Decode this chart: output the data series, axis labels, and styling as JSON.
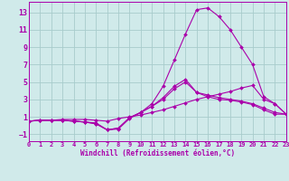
{
  "background_color": "#d0eaea",
  "grid_color": "#a8cccc",
  "line_color": "#aa00aa",
  "xlabel": "Windchill (Refroidissement éolien,°C)",
  "xlim": [
    0,
    23
  ],
  "ylim": [
    -1.8,
    14.2
  ],
  "xticks": [
    0,
    1,
    2,
    3,
    4,
    5,
    6,
    7,
    8,
    9,
    10,
    11,
    12,
    13,
    14,
    15,
    16,
    17,
    18,
    19,
    20,
    21,
    22,
    23
  ],
  "yticks": [
    -1,
    1,
    3,
    5,
    7,
    9,
    11,
    13
  ],
  "lines": [
    {
      "y": [
        0.5,
        0.6,
        0.6,
        0.7,
        0.7,
        0.7,
        0.6,
        0.5,
        0.8,
        1.0,
        1.2,
        1.5,
        1.8,
        2.2,
        2.6,
        3.0,
        3.3,
        3.6,
        3.9,
        4.3,
        4.6,
        3.0,
        2.5,
        1.3
      ]
    },
    {
      "y": [
        0.5,
        0.6,
        0.6,
        0.6,
        0.5,
        0.4,
        0.3,
        -0.5,
        -0.3,
        0.9,
        1.5,
        2.2,
        3.2,
        4.5,
        5.3,
        3.8,
        3.5,
        3.2,
        3.0,
        2.8,
        2.5,
        2.0,
        1.5,
        1.3
      ]
    },
    {
      "y": [
        0.5,
        0.6,
        0.6,
        0.6,
        0.5,
        0.4,
        0.2,
        -0.5,
        -0.4,
        0.8,
        1.5,
        2.5,
        4.5,
        7.5,
        10.5,
        13.3,
        13.5,
        12.5,
        11.0,
        9.0,
        7.0,
        3.3,
        2.5,
        1.3
      ]
    },
    {
      "y": [
        0.5,
        0.6,
        0.6,
        0.6,
        0.5,
        0.4,
        0.2,
        -0.5,
        -0.3,
        0.9,
        1.5,
        2.2,
        3.0,
        4.2,
        5.0,
        3.8,
        3.3,
        3.0,
        2.9,
        2.7,
        2.4,
        1.8,
        1.3,
        1.3
      ]
    }
  ]
}
